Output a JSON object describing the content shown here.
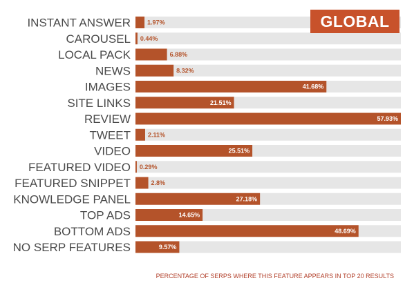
{
  "badge": {
    "label": "GLOBAL"
  },
  "footnote": "PERCENTAGE OF SERPS WHERE THIS FEATURE APPEARS IN TOP 20 RESULTS",
  "colors": {
    "bar": "#b4532a",
    "track": "#e6e6e6",
    "value_label_outside": "#b4532a",
    "value_label_inside": "#ffffff",
    "badge_bg": "#c8522b",
    "footnote": "#b2402b"
  },
  "chart_data": {
    "type": "bar",
    "orientation": "horizontal",
    "categories": [
      "INSTANT ANSWER",
      "CAROUSEL",
      "LOCAL PACK",
      "NEWS",
      "IMAGES",
      "SITE LINKS",
      "REVIEW",
      "TWEET",
      "VIDEO",
      "FEATURED VIDEO",
      "FEATURED SNIPPET",
      "KNOWLEDGE PANEL",
      "TOP ADS",
      "BOTTOM ADS",
      "NO SERP FEATURES"
    ],
    "values": [
      1.97,
      0.44,
      6.88,
      8.32,
      41.68,
      21.51,
      57.93,
      2.11,
      25.51,
      0.29,
      2.8,
      27.18,
      14.65,
      48.69,
      9.57
    ],
    "value_labels": [
      "1.97%",
      "0.44%",
      "6.88%",
      "8.32%",
      "41.68%",
      "21.51%",
      "57.93%",
      "2.11%",
      "25.51%",
      "0.29%",
      "2.8%",
      "27.18%",
      "14.65%",
      "48.69%",
      "9.57%"
    ],
    "xlim": [
      0,
      57.93
    ],
    "grid": false,
    "legend": "none"
  }
}
